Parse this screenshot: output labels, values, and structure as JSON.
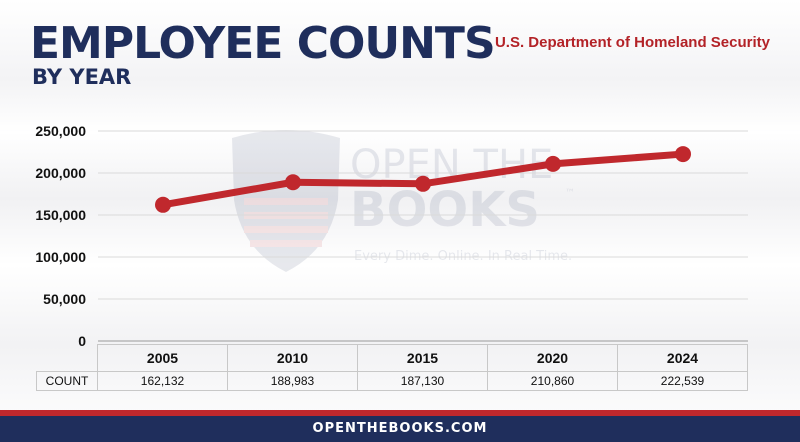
{
  "header": {
    "title": "EMPLOYEE COUNTS",
    "subtitle": "BY YEAR",
    "agency": "U.S. Department of Homeland Security"
  },
  "watermark": {
    "line1": "OPEN THE",
    "line2": "BOOKS",
    "trademark": "™",
    "tagline": "Every Dime. Online. In Real Time."
  },
  "chart_data": {
    "type": "line",
    "title": "EMPLOYEE COUNTS",
    "subtitle": "BY YEAR",
    "categories": [
      "2005",
      "2010",
      "2015",
      "2020",
      "2024"
    ],
    "series": [
      {
        "values": [
          162132,
          188983,
          187130,
          210860,
          222539
        ],
        "color": "#c0282d"
      }
    ],
    "y_ticks": [
      "0",
      "50,000",
      "100,000",
      "150,000",
      "200,000",
      "250,000"
    ],
    "ylim": [
      0,
      250000
    ],
    "grid": true,
    "table_row_label": "COUNT",
    "table_values": [
      "162,132",
      "188,983",
      "187,130",
      "210,860",
      "222,539"
    ]
  },
  "footer": {
    "text": "OPENTHEBOOKS.COM"
  },
  "colors": {
    "navy": "#1f2e5c",
    "red": "#c0282d",
    "agency_red": "#b32227"
  }
}
